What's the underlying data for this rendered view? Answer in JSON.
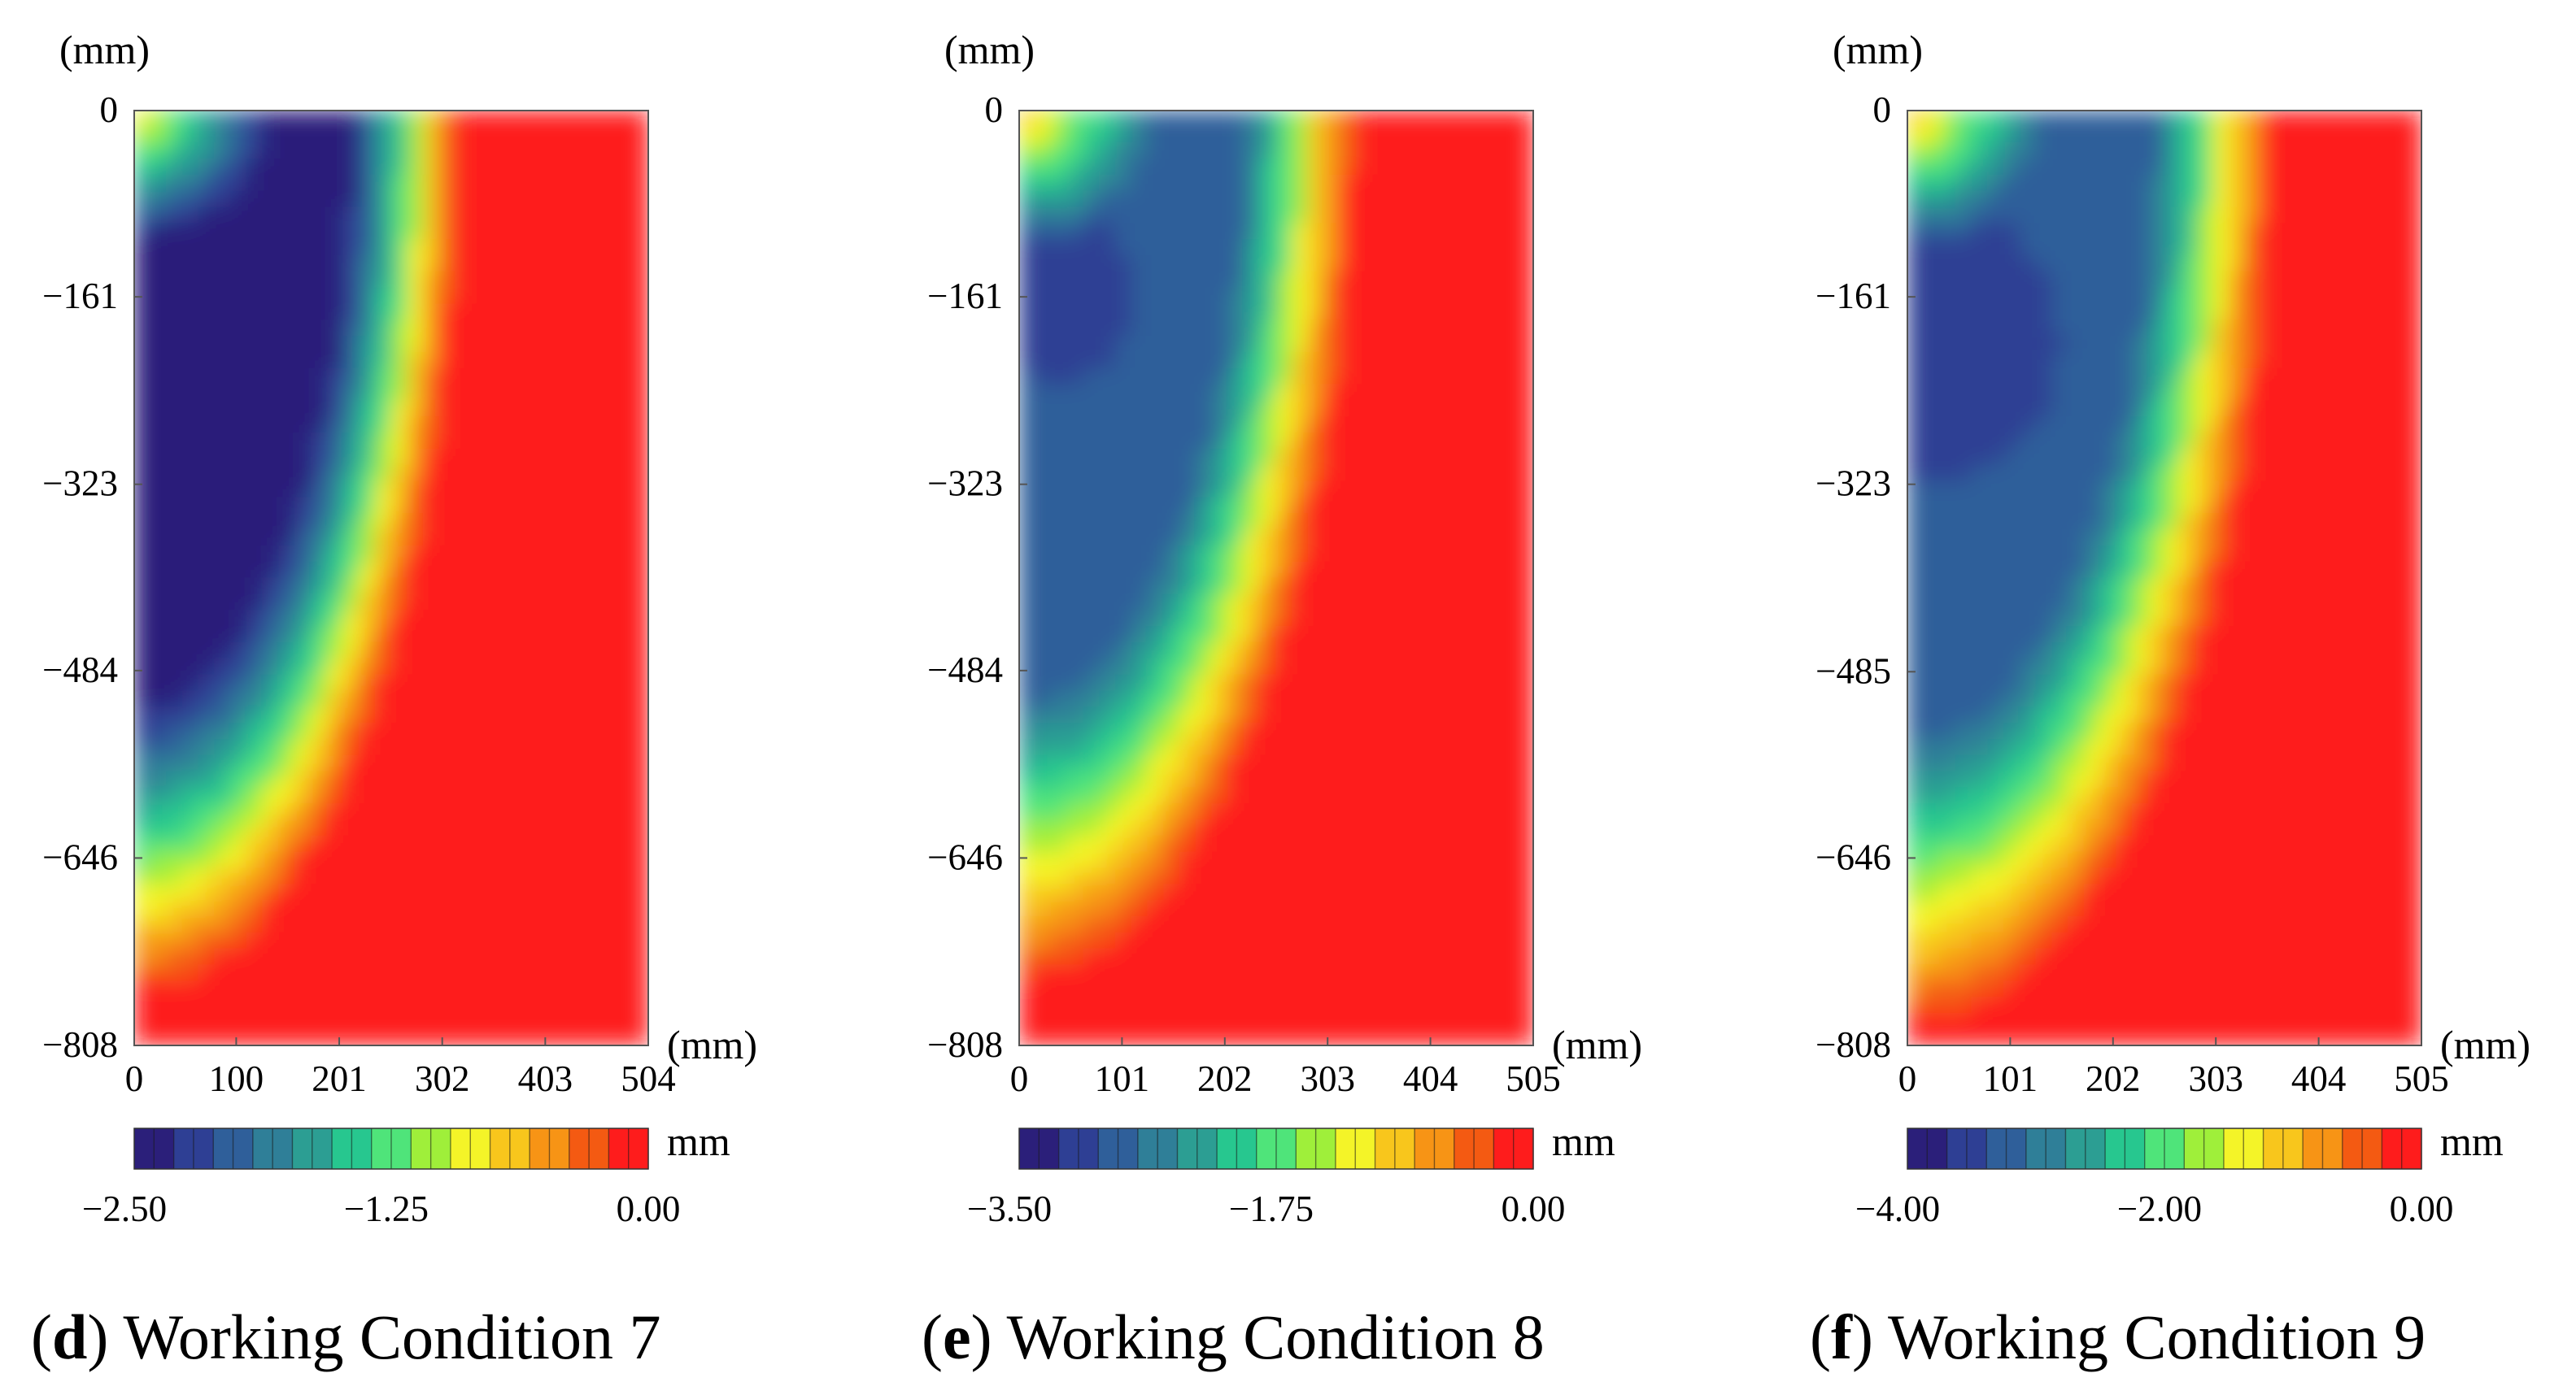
{
  "chart_data": [
    {
      "type": "heatmap",
      "caption": {
        "letter": "d",
        "text": ") Working Condition 7"
      },
      "y_unit": "(mm)",
      "x_unit": "(mm)",
      "x_ticks": [
        "0",
        "100",
        "201",
        "302",
        "403",
        "504"
      ],
      "y_ticks": [
        "0",
        "−161",
        "−323",
        "−484",
        "−646",
        "−808"
      ],
      "xlim": [
        0,
        504
      ],
      "ylim": [
        -808,
        0
      ],
      "colorbar": {
        "unit": "mm",
        "min": -2.5,
        "max": 0,
        "labels": [
          "−2.50",
          "−1.25",
          "0.00"
        ]
      },
      "field": {
        "min_value": -2.5,
        "peak_x": 55,
        "peak_y": -175,
        "front_top_x": 320,
        "front_bottom_y": -770
      }
    },
    {
      "type": "heatmap",
      "caption": {
        "letter": "e",
        "text": ") Working Condition 8"
      },
      "y_unit": "(mm)",
      "x_unit": "(mm)",
      "x_ticks": [
        "0",
        "101",
        "202",
        "303",
        "404",
        "505"
      ],
      "y_ticks": [
        "0",
        "−161",
        "−323",
        "−484",
        "−646",
        "−808"
      ],
      "xlim": [
        0,
        505
      ],
      "ylim": [
        -808,
        0
      ],
      "colorbar": {
        "unit": "mm",
        "min": -3.5,
        "max": 0,
        "labels": [
          "−3.50",
          "−1.75",
          "0.00"
        ]
      },
      "field": {
        "min_value": -2.9,
        "peak_x": 40,
        "peak_y": -160,
        "front_top_x": 330,
        "front_bottom_y": -760
      }
    },
    {
      "type": "heatmap",
      "caption": {
        "letter": "f",
        "text": ") Working Condition 9"
      },
      "y_unit": "(mm)",
      "x_unit": "(mm)",
      "x_ticks": [
        "0",
        "101",
        "202",
        "303",
        "404",
        "505"
      ],
      "y_ticks": [
        "0",
        "−161",
        "−323",
        "−485",
        "−646",
        "−808"
      ],
      "xlim": [
        0,
        505
      ],
      "ylim": [
        -808,
        0
      ],
      "colorbar": {
        "unit": "mm",
        "min": -4.0,
        "max": 0,
        "labels": [
          "−4.00",
          "−2.00",
          "0.00"
        ]
      },
      "field": {
        "min_value": -3.4,
        "peak_x": 30,
        "peak_y": -200,
        "front_top_x": 360,
        "front_bottom_y": -800
      }
    }
  ],
  "colors": {
    "scale": [
      "#2b1f7a",
      "#2e3f94",
      "#2f5f9a",
      "#2f7f98",
      "#2c9e93",
      "#27c78f",
      "#4fe47a",
      "#9fef3a",
      "#f4f428",
      "#f8c61c",
      "#f79415",
      "#f45a12",
      "#fe1c1c"
    ]
  }
}
